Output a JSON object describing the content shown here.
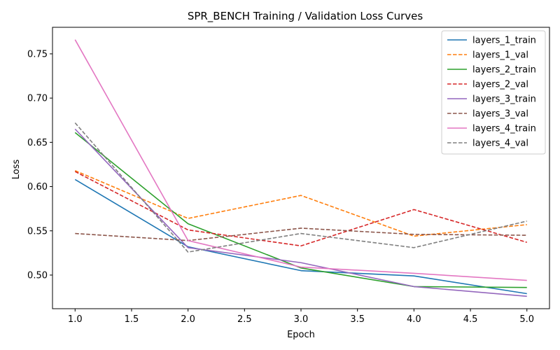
{
  "chart_data": {
    "type": "line",
    "title": "SPR_BENCH Training / Validation Loss Curves",
    "xlabel": "Epoch",
    "ylabel": "Loss",
    "xlim": [
      0.8,
      5.2
    ],
    "ylim": [
      0.462,
      0.78
    ],
    "xticks": [
      1.0,
      1.5,
      2.0,
      2.5,
      3.0,
      3.5,
      4.0,
      4.5,
      5.0
    ],
    "xtick_labels": [
      "1.0",
      "1.5",
      "2.0",
      "2.5",
      "3.0",
      "3.5",
      "4.0",
      "4.5",
      "5.0"
    ],
    "yticks": [
      0.5,
      0.55,
      0.6,
      0.65,
      0.7,
      0.75
    ],
    "ytick_labels": [
      "0.50",
      "0.55",
      "0.60",
      "0.65",
      "0.70",
      "0.75"
    ],
    "grid": false,
    "legend_position": "top-right",
    "x": [
      1,
      2,
      3,
      4,
      5
    ],
    "series": [
      {
        "name": "layers_1_train",
        "color": "#1f77b4",
        "dash": false,
        "values": [
          0.608,
          0.532,
          0.505,
          0.499,
          0.479
        ]
      },
      {
        "name": "layers_1_val",
        "color": "#ff7f0e",
        "dash": true,
        "values": [
          0.618,
          0.564,
          0.59,
          0.544,
          0.557
        ]
      },
      {
        "name": "layers_2_train",
        "color": "#2ca02c",
        "dash": false,
        "values": [
          0.661,
          0.558,
          0.508,
          0.487,
          0.486
        ]
      },
      {
        "name": "layers_2_val",
        "color": "#d62728",
        "dash": true,
        "values": [
          0.617,
          0.551,
          0.533,
          0.574,
          0.537
        ]
      },
      {
        "name": "layers_3_train",
        "color": "#9467bd",
        "dash": false,
        "values": [
          0.665,
          0.531,
          0.514,
          0.487,
          0.476
        ]
      },
      {
        "name": "layers_3_val",
        "color": "#8c564b",
        "dash": true,
        "values": [
          0.547,
          0.539,
          0.553,
          0.546,
          0.545
        ]
      },
      {
        "name": "layers_4_train",
        "color": "#e377c2",
        "dash": false,
        "values": [
          0.766,
          0.539,
          0.509,
          0.502,
          0.494
        ]
      },
      {
        "name": "layers_4_val",
        "color": "#7f7f7f",
        "dash": true,
        "values": [
          0.672,
          0.526,
          0.547,
          0.531,
          0.561
        ]
      }
    ]
  }
}
